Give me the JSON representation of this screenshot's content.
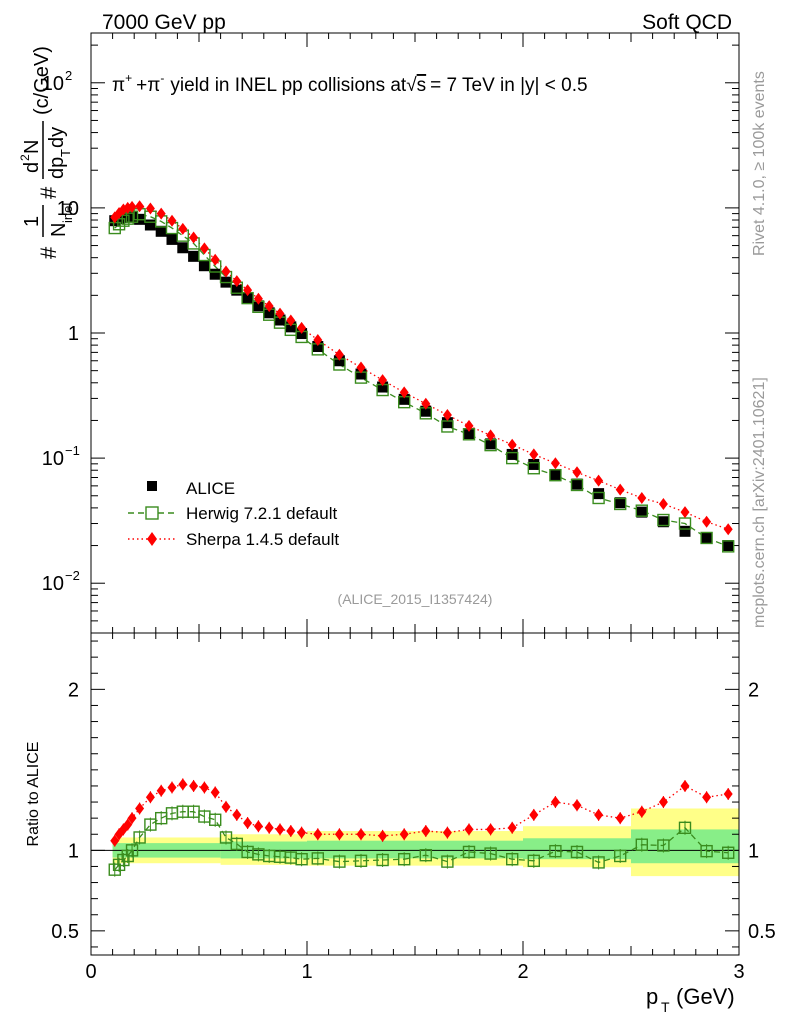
{
  "header": {
    "left": "7000 GeV pp",
    "right": "Soft QCD"
  },
  "sidebar": {
    "rivet": "Rivet 4.1.0, ≥ 100k events",
    "mcplots": "mcplots.cern.ch [arXiv:2401.10621]"
  },
  "plot_title": {
    "pi_plus": "π",
    "plus_sign": "+",
    "pi_minus": "π",
    "minus_sign": "-",
    "joiner": "+",
    "text_a": "yield in INEL pp collisions at",
    "sqrt": "√",
    "s": "s",
    "text_b": "=  7 TeV in |y| < 0.5"
  },
  "analysis_id": "(ALICE_2015_I1357424)",
  "colors": {
    "data": "#000000",
    "herwig": "#3a8c1e",
    "sherpa": "#ff0000",
    "band_outer": "#ffff88",
    "band_inner": "#88ee88",
    "sidebar_text": "#9a9a9a"
  },
  "chart_data": [
    {
      "type": "scatter",
      "title": "pi+ + pi- yield in INEL pp collisions at sqrt(s) = 7 TeV in |y| < 0.5",
      "scale": "log",
      "xlim": [
        0,
        3
      ],
      "ylim": [
        0.004,
        250
      ],
      "xlabel": "",
      "ylabel": {
        "num1": "1",
        "den1": "N",
        "den1_sub": "inel",
        "num2": "d",
        "num2_sup": "2",
        "num2_tail": "N",
        "den2": "dp",
        "den2_sub": "T",
        "den2_tail": "dy",
        "hash1": "#",
        "hash2": "#",
        "unit": "(c/GeV)"
      },
      "y_ticks": [
        {
          "value": 0.01,
          "base": "10",
          "exp": "−2"
        },
        {
          "value": 0.1,
          "base": "10",
          "exp": "−1"
        },
        {
          "value": 1,
          "base": "1",
          "exp": ""
        },
        {
          "value": 10,
          "base": "10",
          "exp": ""
        },
        {
          "value": 100,
          "base": "10",
          "exp": "2"
        }
      ],
      "x": [
        0.11,
        0.13,
        0.15,
        0.17,
        0.19,
        0.225,
        0.275,
        0.325,
        0.375,
        0.425,
        0.475,
        0.525,
        0.575,
        0.625,
        0.675,
        0.725,
        0.775,
        0.825,
        0.875,
        0.925,
        0.975,
        1.05,
        1.15,
        1.25,
        1.35,
        1.45,
        1.55,
        1.65,
        1.75,
        1.85,
        1.95,
        2.05,
        2.15,
        2.25,
        2.35,
        2.45,
        2.55,
        2.65,
        2.75,
        2.85,
        2.95
      ],
      "series": [
        {
          "name": "ALICE",
          "marker": "square",
          "values": [
            7.9,
            8.2,
            8.4,
            8.5,
            8.45,
            8.1,
            7.3,
            6.5,
            5.6,
            4.8,
            4.1,
            3.45,
            2.95,
            2.55,
            2.2,
            1.9,
            1.65,
            1.45,
            1.27,
            1.12,
            0.99,
            0.78,
            0.6,
            0.47,
            0.37,
            0.295,
            0.237,
            0.192,
            0.157,
            0.13,
            0.107,
            0.089,
            0.074,
            0.062,
            0.052,
            0.044,
            0.037,
            0.031,
            0.026,
            0.023,
            0.02
          ]
        },
        {
          "name": "Herwig 7.2.1 default",
          "marker": "open-square",
          "line": "dashed",
          "values": [
            6.9,
            7.4,
            7.9,
            8.2,
            8.5,
            8.9,
            8.5,
            7.8,
            6.9,
            6.0,
            5.2,
            4.2,
            3.4,
            2.8,
            2.3,
            1.9,
            1.62,
            1.4,
            1.21,
            1.06,
            0.93,
            0.74,
            0.56,
            0.44,
            0.35,
            0.28,
            0.228,
            0.179,
            0.155,
            0.127,
            0.1,
            0.083,
            0.073,
            0.061,
            0.048,
            0.043,
            0.038,
            0.032,
            0.03,
            0.023,
            0.0197
          ]
        },
        {
          "name": "Sherpa 1.4.5 default",
          "marker": "diamond",
          "line": "dotted",
          "values": [
            8.4,
            9.1,
            9.7,
            10.0,
            10.2,
            10.3,
            9.9,
            9.0,
            7.9,
            6.8,
            5.8,
            4.75,
            3.85,
            3.1,
            2.6,
            2.2,
            1.88,
            1.64,
            1.43,
            1.26,
            1.1,
            0.88,
            0.67,
            0.53,
            0.42,
            0.335,
            0.272,
            0.221,
            0.181,
            0.152,
            0.128,
            0.107,
            0.091,
            0.077,
            0.066,
            0.056,
            0.048,
            0.043,
            0.037,
            0.031,
            0.027
          ]
        }
      ],
      "legend": {
        "placement": "lower-left",
        "entries": [
          "ALICE",
          "Herwig 7.2.1 default",
          "Sherpa 1.4.5 default"
        ]
      }
    },
    {
      "type": "scatter",
      "title": "Ratio to ALICE",
      "xlim": [
        0,
        3
      ],
      "ylim": [
        0.35,
        2.35
      ],
      "xlabel": {
        "p": "p",
        "sub": "T",
        "unit": "(GeV)"
      },
      "ylabel": "Ratio to ALICE",
      "x_ticks": [
        {
          "value": 0,
          "label": "0"
        },
        {
          "value": 1,
          "label": "1"
        },
        {
          "value": 2,
          "label": "2"
        },
        {
          "value": 3,
          "label": "3"
        }
      ],
      "y_ticks": [
        {
          "value": 0.5,
          "label": "0.5"
        },
        {
          "value": 1,
          "label": "1"
        },
        {
          "value": 2,
          "label": "2"
        }
      ],
      "uncertainty_bands": {
        "segments": [
          {
            "x0": 0.1,
            "x1": 0.6,
            "outer": [
              0.92,
              1.08
            ],
            "inner": [
              0.955,
              1.045
            ]
          },
          {
            "x0": 0.6,
            "x1": 1.0,
            "outer": [
              0.91,
              1.1
            ],
            "inner": [
              0.95,
              1.055
            ]
          },
          {
            "x0": 1.0,
            "x1": 2.0,
            "outer": [
              0.905,
              1.12
            ],
            "inner": [
              0.95,
              1.06
            ]
          },
          {
            "x0": 2.0,
            "x1": 2.5,
            "outer": [
              0.895,
              1.15
            ],
            "inner": [
              0.945,
              1.075
            ]
          },
          {
            "x0": 2.5,
            "x1": 3.0,
            "outer": [
              0.84,
              1.26
            ],
            "inner": [
              0.92,
              1.13
            ]
          }
        ]
      },
      "x": [
        0.11,
        0.13,
        0.15,
        0.17,
        0.19,
        0.225,
        0.275,
        0.325,
        0.375,
        0.425,
        0.475,
        0.525,
        0.575,
        0.625,
        0.675,
        0.725,
        0.775,
        0.825,
        0.875,
        0.925,
        0.975,
        1.05,
        1.15,
        1.25,
        1.35,
        1.45,
        1.55,
        1.65,
        1.75,
        1.85,
        1.95,
        2.05,
        2.15,
        2.25,
        2.35,
        2.45,
        2.55,
        2.65,
        2.75,
        2.85,
        2.95
      ],
      "series": [
        {
          "name": "Herwig 7.2.1 default",
          "marker": "open-square",
          "line": "dashed",
          "values": [
            0.88,
            0.91,
            0.94,
            0.965,
            1.0,
            1.08,
            1.16,
            1.2,
            1.23,
            1.24,
            1.24,
            1.21,
            1.19,
            1.08,
            1.04,
            0.99,
            0.975,
            0.965,
            0.96,
            0.955,
            0.945,
            0.95,
            0.93,
            0.935,
            0.94,
            0.945,
            0.97,
            0.93,
            0.99,
            0.98,
            0.945,
            0.935,
            0.995,
            0.99,
            0.925,
            0.965,
            1.035,
            1.03,
            1.14,
            0.995,
            0.985
          ]
        },
        {
          "name": "Sherpa 1.4.5 default",
          "marker": "diamond",
          "line": "dotted",
          "values": [
            1.06,
            1.1,
            1.13,
            1.16,
            1.2,
            1.26,
            1.33,
            1.37,
            1.39,
            1.41,
            1.4,
            1.39,
            1.36,
            1.27,
            1.22,
            1.17,
            1.15,
            1.14,
            1.13,
            1.12,
            1.11,
            1.1,
            1.1,
            1.1,
            1.09,
            1.1,
            1.12,
            1.11,
            1.13,
            1.13,
            1.14,
            1.22,
            1.3,
            1.28,
            1.22,
            1.2,
            1.24,
            1.3,
            1.4,
            1.33,
            1.35
          ]
        }
      ]
    }
  ]
}
